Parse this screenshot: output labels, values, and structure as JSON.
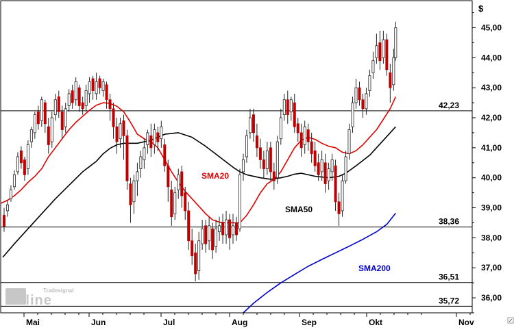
{
  "chart_data": {
    "type": "candlestick",
    "currency_label": "$",
    "x_axis": {
      "months": [
        "Mai",
        "Jun",
        "Jul",
        "Aug",
        "Sep",
        "Okt",
        "Nov"
      ]
    },
    "y_axis": {
      "range": [
        35.5,
        45.9
      ],
      "ticks": [
        "45,00",
        "44,00",
        "43,00",
        "42,00",
        "41,00",
        "40,00",
        "39,00",
        "38,00",
        "37,00",
        "36,00"
      ],
      "tick_values": [
        45,
        44,
        43,
        42,
        41,
        40,
        39,
        38,
        37,
        36
      ],
      "grid": false
    },
    "horizontal_levels": [
      {
        "value": 42.23,
        "label": "42,23"
      },
      {
        "value": 38.36,
        "label": "38,36"
      },
      {
        "value": 36.51,
        "label": "36,51"
      },
      {
        "value": 35.72,
        "label": "35,72"
      }
    ],
    "series": [
      {
        "name": "SMA20",
        "color": "#e00000"
      },
      {
        "name": "SMA50",
        "color": "#000000"
      },
      {
        "name": "SMA200",
        "color": "#0000cc"
      }
    ],
    "sma20": [
      [
        0,
        39.15
      ],
      [
        10,
        39.25
      ],
      [
        20,
        39.4
      ],
      [
        30,
        39.6
      ],
      [
        40,
        39.85
      ],
      [
        50,
        40.05
      ],
      [
        60,
        40.3
      ],
      [
        70,
        40.7
      ],
      [
        80,
        41.0
      ],
      [
        90,
        41.3
      ],
      [
        100,
        41.6
      ],
      [
        110,
        41.85
      ],
      [
        120,
        42.05
      ],
      [
        130,
        42.25
      ],
      [
        140,
        42.42
      ],
      [
        150,
        42.5
      ],
      [
        160,
        42.48
      ],
      [
        170,
        42.38
      ],
      [
        180,
        42.2
      ],
      [
        190,
        41.85
      ],
      [
        200,
        41.45
      ],
      [
        210,
        41.3
      ],
      [
        220,
        41.2
      ],
      [
        230,
        41.0
      ],
      [
        240,
        40.6
      ],
      [
        250,
        40.2
      ],
      [
        260,
        39.85
      ],
      [
        270,
        39.55
      ],
      [
        280,
        39.3
      ],
      [
        290,
        39.05
      ],
      [
        300,
        38.8
      ],
      [
        310,
        38.6
      ],
      [
        320,
        38.52
      ],
      [
        330,
        38.5
      ],
      [
        350,
        38.5
      ],
      [
        360,
        38.75
      ],
      [
        370,
        39.1
      ],
      [
        380,
        39.5
      ],
      [
        390,
        39.8
      ],
      [
        400,
        39.95
      ],
      [
        410,
        40.2
      ],
      [
        420,
        40.6
      ],
      [
        430,
        41.0
      ],
      [
        440,
        41.25
      ],
      [
        450,
        41.35
      ],
      [
        460,
        41.28
      ],
      [
        470,
        41.15
      ],
      [
        480,
        41.05
      ],
      [
        490,
        41.0
      ],
      [
        500,
        40.85
      ],
      [
        510,
        40.8
      ],
      [
        520,
        40.9
      ],
      [
        530,
        41.1
      ],
      [
        540,
        41.35
      ],
      [
        550,
        41.6
      ],
      [
        560,
        41.95
      ],
      [
        570,
        42.3
      ],
      [
        578,
        42.7
      ]
    ],
    "sma50": [
      [
        3,
        37.35
      ],
      [
        20,
        37.8
      ],
      [
        40,
        38.3
      ],
      [
        60,
        38.8
      ],
      [
        80,
        39.3
      ],
      [
        100,
        39.75
      ],
      [
        120,
        40.2
      ],
      [
        140,
        40.55
      ],
      [
        150,
        40.8
      ],
      [
        160,
        40.98
      ],
      [
        170,
        41.1
      ],
      [
        180,
        41.15
      ],
      [
        200,
        41.15
      ],
      [
        220,
        41.25
      ],
      [
        240,
        41.45
      ],
      [
        260,
        41.5
      ],
      [
        280,
        41.35
      ],
      [
        300,
        41.05
      ],
      [
        320,
        40.7
      ],
      [
        340,
        40.35
      ],
      [
        350,
        40.2
      ],
      [
        360,
        40.1
      ],
      [
        380,
        40.0
      ],
      [
        395,
        39.95
      ],
      [
        410,
        40.0
      ],
      [
        420,
        40.05
      ],
      [
        430,
        40.12
      ],
      [
        440,
        40.15
      ],
      [
        460,
        40.05
      ],
      [
        480,
        40.0
      ],
      [
        495,
        40.05
      ],
      [
        505,
        40.15
      ],
      [
        520,
        40.4
      ],
      [
        540,
        40.75
      ],
      [
        560,
        41.25
      ],
      [
        578,
        41.7
      ]
    ],
    "sma200": [
      [
        355,
        35.5
      ],
      [
        370,
        35.82
      ],
      [
        390,
        36.18
      ],
      [
        410,
        36.5
      ],
      [
        430,
        36.78
      ],
      [
        450,
        37.05
      ],
      [
        470,
        37.28
      ],
      [
        490,
        37.5
      ],
      [
        510,
        37.72
      ],
      [
        530,
        37.95
      ],
      [
        550,
        38.2
      ],
      [
        565,
        38.45
      ],
      [
        578,
        38.82
      ]
    ],
    "candles": [
      [
        5,
        38.75,
        38.38,
        39.0,
        38.2
      ],
      [
        10,
        38.9,
        39.1,
        39.25,
        38.7
      ],
      [
        15,
        39.3,
        39.6,
        39.75,
        39.2
      ],
      [
        20,
        39.7,
        40.1,
        40.25,
        39.6
      ],
      [
        25,
        40.2,
        40.7,
        40.85,
        40.1
      ],
      [
        30,
        40.9,
        40.5,
        41.05,
        40.3
      ],
      [
        35,
        40.6,
        40.1,
        40.7,
        39.9
      ],
      [
        40,
        40.3,
        41.1,
        41.25,
        40.1
      ],
      [
        45,
        41.2,
        41.6,
        41.7,
        41.0
      ],
      [
        50,
        41.5,
        42.1,
        42.2,
        41.3
      ],
      [
        55,
        42.2,
        41.8,
        42.4,
        41.6
      ],
      [
        60,
        41.9,
        42.6,
        42.7,
        41.7
      ],
      [
        65,
        42.5,
        41.8,
        42.6,
        41.5
      ],
      [
        70,
        41.7,
        41.1,
        42.0,
        40.8
      ],
      [
        75,
        41.2,
        42.0,
        42.2,
        41.0
      ],
      [
        80,
        42.1,
        42.6,
        42.8,
        41.9
      ],
      [
        85,
        42.7,
        42.2,
        42.9,
        42.0
      ],
      [
        90,
        42.2,
        41.6,
        42.4,
        41.3
      ],
      [
        95,
        41.7,
        42.3,
        42.5,
        41.5
      ],
      [
        100,
        42.4,
        42.8,
        42.95,
        42.2
      ],
      [
        105,
        42.9,
        42.5,
        43.1,
        42.3
      ],
      [
        110,
        42.6,
        43.2,
        43.35,
        42.4
      ],
      [
        115,
        43.0,
        42.4,
        43.1,
        42.2
      ],
      [
        120,
        42.5,
        42.3,
        42.7,
        42.1
      ],
      [
        125,
        42.4,
        42.9,
        43.1,
        42.2
      ],
      [
        130,
        42.8,
        43.2,
        43.35,
        42.5
      ],
      [
        135,
        43.3,
        42.9,
        43.4,
        42.6
      ],
      [
        140,
        42.8,
        43.2,
        43.5,
        42.6
      ],
      [
        145,
        43.3,
        43.0,
        43.4,
        42.8
      ],
      [
        150,
        42.9,
        43.2,
        43.3,
        42.7
      ],
      [
        155,
        43.1,
        42.6,
        43.2,
        42.3
      ],
      [
        160,
        42.6,
        42.3,
        42.8,
        41.9
      ],
      [
        165,
        42.3,
        41.7,
        42.5,
        41.3
      ],
      [
        170,
        41.7,
        41.2,
        42.0,
        40.8
      ],
      [
        175,
        41.3,
        41.8,
        42.0,
        41.0
      ],
      [
        180,
        41.9,
        41.4,
        42.1,
        40.6
      ],
      [
        185,
        41.4,
        39.9,
        41.6,
        39.6
      ],
      [
        190,
        39.8,
        39.1,
        40.0,
        38.5
      ],
      [
        195,
        39.2,
        39.9,
        40.1,
        38.8
      ],
      [
        200,
        39.9,
        40.2,
        40.5,
        39.4
      ],
      [
        205,
        40.3,
        40.7,
        40.9,
        40.0
      ],
      [
        210,
        40.6,
        41.0,
        41.3,
        40.3
      ],
      [
        215,
        41.1,
        41.5,
        41.6,
        40.8
      ],
      [
        220,
        41.4,
        41.0,
        41.8,
        40.7
      ],
      [
        225,
        41.1,
        41.6,
        41.8,
        40.8
      ],
      [
        230,
        41.5,
        41.2,
        41.7,
        40.9
      ],
      [
        235,
        41.3,
        41.7,
        41.9,
        41.0
      ],
      [
        240,
        41.1,
        40.4,
        41.3,
        40.2
      ],
      [
        245,
        40.4,
        39.7,
        40.6,
        39.2
      ],
      [
        250,
        39.6,
        38.7,
        39.9,
        38.4
      ],
      [
        255,
        38.8,
        39.5,
        39.7,
        38.6
      ],
      [
        260,
        39.6,
        40.1,
        40.3,
        39.3
      ],
      [
        265,
        40.2,
        39.4,
        40.4,
        39.0
      ],
      [
        270,
        39.5,
        38.9,
        39.7,
        38.6
      ],
      [
        275,
        38.9,
        37.9,
        39.2,
        37.6
      ],
      [
        280,
        37.9,
        37.4,
        38.3,
        37.1
      ],
      [
        285,
        37.5,
        36.8,
        37.8,
        36.55
      ],
      [
        290,
        36.9,
        37.9,
        38.2,
        36.6
      ],
      [
        295,
        37.8,
        38.3,
        38.6,
        37.6
      ],
      [
        300,
        38.4,
        37.8,
        38.6,
        37.5
      ],
      [
        305,
        37.9,
        38.4,
        38.7,
        37.6
      ],
      [
        310,
        38.3,
        37.6,
        38.5,
        37.3
      ],
      [
        315,
        37.7,
        38.3,
        38.6,
        37.5
      ],
      [
        320,
        38.2,
        38.4,
        38.7,
        37.9
      ],
      [
        325,
        38.5,
        38.1,
        38.8,
        37.8
      ],
      [
        330,
        38.1,
        38.6,
        38.9,
        37.8
      ],
      [
        335,
        38.6,
        38.0,
        38.8,
        37.6
      ],
      [
        340,
        38.1,
        38.4,
        38.8,
        37.8
      ],
      [
        345,
        38.5,
        38.1,
        38.7,
        37.9
      ],
      [
        350,
        38.3,
        40.1,
        40.3,
        38.2
      ],
      [
        355,
        40.2,
        40.6,
        40.8,
        39.9
      ],
      [
        360,
        40.7,
        41.4,
        41.6,
        40.5
      ],
      [
        365,
        41.5,
        42.0,
        42.3,
        41.3
      ],
      [
        370,
        42.1,
        41.5,
        42.3,
        41.2
      ],
      [
        375,
        41.4,
        41.0,
        41.8,
        40.7
      ],
      [
        380,
        41.0,
        40.6,
        41.3,
        40.3
      ],
      [
        385,
        40.6,
        40.3,
        40.9,
        40.0
      ],
      [
        390,
        40.3,
        40.9,
        41.2,
        40.1
      ],
      [
        395,
        41.0,
        40.2,
        41.2,
        39.9
      ],
      [
        400,
        40.2,
        39.9,
        40.5,
        39.6
      ],
      [
        405,
        40.0,
        41.2,
        41.4,
        39.8
      ],
      [
        410,
        41.3,
        42.0,
        42.3,
        41.1
      ],
      [
        415,
        42.1,
        42.6,
        42.8,
        41.9
      ],
      [
        420,
        42.6,
        42.1,
        42.9,
        41.8
      ],
      [
        425,
        42.2,
        42.6,
        42.7,
        41.9
      ],
      [
        430,
        42.5,
        41.7,
        42.8,
        41.5
      ],
      [
        435,
        41.8,
        41.5,
        42.0,
        41.2
      ],
      [
        440,
        41.5,
        41.0,
        41.8,
        40.7
      ],
      [
        445,
        41.1,
        41.7,
        41.9,
        40.8
      ],
      [
        450,
        41.6,
        41.2,
        41.8,
        40.9
      ],
      [
        455,
        41.2,
        40.8,
        41.5,
        40.5
      ],
      [
        460,
        40.9,
        40.4,
        41.2,
        40.2
      ],
      [
        465,
        40.5,
        40.1,
        40.8,
        39.9
      ],
      [
        470,
        40.2,
        40.6,
        40.9,
        39.9
      ],
      [
        475,
        40.5,
        39.8,
        40.8,
        39.5
      ],
      [
        480,
        39.9,
        40.3,
        40.5,
        39.6
      ],
      [
        485,
        40.2,
        40.6,
        40.8,
        39.9
      ],
      [
        490,
        40.4,
        39.2,
        40.6,
        38.9
      ],
      [
        495,
        39.2,
        38.8,
        39.5,
        38.4
      ],
      [
        500,
        38.9,
        39.9,
        40.1,
        38.7
      ],
      [
        505,
        39.9,
        40.7,
        40.9,
        39.8
      ],
      [
        510,
        40.8,
        41.6,
        41.8,
        40.6
      ],
      [
        515,
        41.7,
        42.5,
        42.7,
        41.5
      ],
      [
        520,
        42.5,
        43.0,
        43.3,
        42.3
      ],
      [
        525,
        43.0,
        42.6,
        43.2,
        42.4
      ],
      [
        530,
        42.6,
        42.3,
        42.8,
        42.0
      ],
      [
        535,
        42.3,
        42.8,
        43.0,
        42.1
      ],
      [
        540,
        42.9,
        43.4,
        43.6,
        42.7
      ],
      [
        545,
        43.5,
        43.9,
        44.2,
        43.3
      ],
      [
        550,
        44.0,
        44.4,
        44.8,
        43.8
      ],
      [
        555,
        44.5,
        43.9,
        44.9,
        43.6
      ],
      [
        560,
        44.0,
        44.6,
        44.9,
        43.8
      ],
      [
        565,
        44.6,
        43.6,
        44.8,
        43.4
      ],
      [
        570,
        43.5,
        43.0,
        43.8,
        42.5
      ],
      [
        575,
        43.1,
        44.0,
        44.3,
        42.9
      ],
      [
        578,
        44.0,
        45.0,
        45.2,
        43.9
      ]
    ]
  },
  "labels": {
    "sma20": "SMA20",
    "sma50": "SMA50",
    "sma200": "SMA200"
  },
  "logo": {
    "brand": "Tradesignal",
    "text": "online"
  }
}
